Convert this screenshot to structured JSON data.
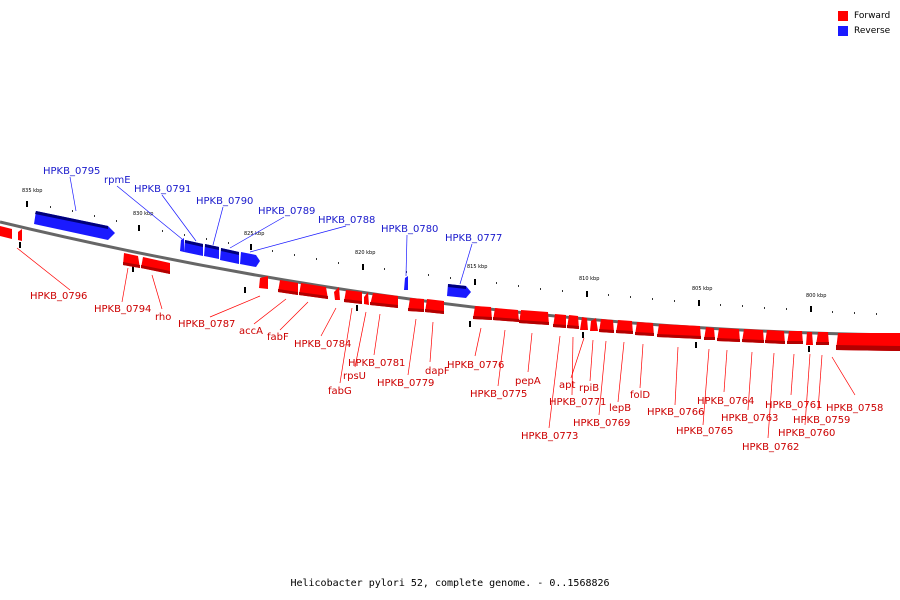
{
  "colors": {
    "forward": "#ff0000",
    "reverse": "#1a1aff",
    "forward_label": "#cc0000",
    "reverse_label": "#1a1acc",
    "backbone": "#666666"
  },
  "legend": [
    {
      "label": "Forward",
      "color": "#ff0000"
    },
    {
      "label": "Reverse",
      "color": "#1a1aff"
    }
  ],
  "caption": "Helicobacter pylori 52, complete genome. - 0..1568826",
  "scale": {
    "unit": "kbp",
    "ticks": [
      {
        "label": "835 kbp",
        "kbp": 835
      },
      {
        "label": "830 kbp",
        "kbp": 830
      },
      {
        "label": "825 kbp",
        "kbp": 825
      },
      {
        "label": "820 kbp",
        "kbp": 820
      },
      {
        "label": "815 kbp",
        "kbp": 815
      },
      {
        "label": "810 kbp",
        "kbp": 810
      },
      {
        "label": "805 kbp",
        "kbp": 805
      },
      {
        "label": "800 kbp",
        "kbp": 800
      }
    ]
  },
  "reverse_genes": [
    "HPKB_0795",
    "rpmE",
    "HPKB_0791",
    "HPKB_0790",
    "HPKB_0789",
    "HPKB_0788",
    "HPKB_0780",
    "HPKB_0777"
  ],
  "forward_genes": [
    "HPKB_0796",
    "HPKB_0794",
    "rho",
    "HPKB_0787",
    "accA",
    "fabF",
    "HPKB_0784",
    "fabG",
    "rpsU",
    "HPKB_0781",
    "HPKB_0779",
    "dapF",
    "HPKB_0776",
    "HPKB_0775",
    "pepA",
    "HPKB_0773",
    "HPKB_0771",
    "apt",
    "rpiB",
    "HPKB_0769",
    "lepB",
    "folD",
    "HPKB_0766",
    "HPKB_0765",
    "HPKB_0764",
    "HPKB_0763",
    "HPKB_0762",
    "HPKB_0761",
    "HPKB_0760",
    "HPKB_0759",
    "HPKB_0758"
  ]
}
